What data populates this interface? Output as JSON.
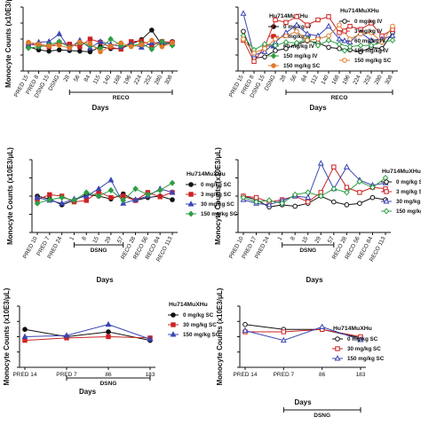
{
  "chart_data": [
    {
      "id": "a1",
      "type": "line",
      "ylabel": "Monocyte Counts (x10E3/μL)",
      "xlabel": "Days",
      "categories": [
        "PRED 15",
        "PRED 8",
        "DSNG 15",
        "DSNG",
        "28",
        "56",
        "84",
        "115",
        "140",
        "168",
        "196",
        "224",
        "252",
        "280",
        "308"
      ],
      "legend_title": "Hu714MuXHu",
      "legend_position": "right",
      "phases": [
        {
          "label": "RECO",
          "from": 4,
          "to": 14
        }
      ],
      "ylim": [
        0,
        1.0
      ],
      "series": [
        {
          "name": "0 mg/kg IV",
          "color": "#111111",
          "marker": "circle-filled",
          "values": [
            0.38,
            0.33,
            0.31,
            0.33,
            0.32,
            0.31,
            0.3,
            0.38,
            0.35,
            0.35,
            0.42,
            0.49,
            0.64,
            0.4,
            0.46
          ]
        },
        {
          "name": "3 mg/kg IV",
          "color": "#cc2222",
          "marker": "square-filled",
          "values": [
            0.42,
            0.4,
            0.38,
            0.44,
            0.42,
            0.38,
            0.5,
            0.45,
            0.37,
            0.34,
            0.46,
            0.47,
            0.4,
            0.46,
            0.45
          ]
        },
        {
          "name": "60 mg/kg IV",
          "color": "#3a46b4",
          "marker": "triangle-filled",
          "values": [
            0.4,
            0.45,
            0.46,
            0.58,
            0.35,
            0.48,
            0.36,
            0.46,
            0.42,
            0.38,
            0.42,
            0.37,
            0.44,
            0.45,
            0.43
          ]
        },
        {
          "name": "150 mg/kg IV",
          "color": "#2f9e44",
          "marker": "diamond-filled",
          "values": [
            0.36,
            0.38,
            0.41,
            0.46,
            0.37,
            0.44,
            0.4,
            0.35,
            0.5,
            0.4,
            0.39,
            0.43,
            0.34,
            0.46,
            0.4
          ]
        },
        {
          "name": "150 mg/kg SC",
          "color": "#e07a2a",
          "marker": "circle-filled",
          "values": [
            0.45,
            0.42,
            0.39,
            0.4,
            0.36,
            0.45,
            0.43,
            0.3,
            0.39,
            0.44,
            0.38,
            0.41,
            0.48,
            0.38,
            0.44
          ]
        }
      ]
    },
    {
      "id": "a2",
      "type": "line",
      "ylabel": "",
      "xlabel": "Days",
      "categories": [
        "PRED 15",
        "PRED 8",
        "DSNG 15",
        "DSNG",
        "28",
        "56",
        "84",
        "112",
        "140",
        "168",
        "196",
        "224",
        "252",
        "280",
        "308"
      ],
      "legend_title": "Hu714MuXHu",
      "legend_position": "right",
      "phases": [
        {
          "label": "RECO",
          "from": 4,
          "to": 14
        }
      ],
      "ylim": [
        0,
        1.0
      ],
      "series": [
        {
          "name": "0 mg/kg IV",
          "color": "#111111",
          "marker": "circle-open",
          "values": [
            0.62,
            0.2,
            0.22,
            0.32,
            0.35,
            0.42,
            0.47,
            0.44,
            0.37,
            0.35,
            0.33,
            0.3,
            0.37,
            0.35,
            0.6
          ]
        },
        {
          "name": "3 mg/kg IV",
          "color": "#cc2222",
          "marker": "square-open",
          "values": [
            0.48,
            0.15,
            0.38,
            0.8,
            0.76,
            0.85,
            0.72,
            0.8,
            0.85,
            0.6,
            0.7,
            0.65,
            0.75,
            0.55,
            0.65
          ]
        },
        {
          "name": "60 mg/kg IV",
          "color": "#3a46b4",
          "marker": "triangle-open",
          "values": [
            0.9,
            0.25,
            0.3,
            0.45,
            0.6,
            0.72,
            0.58,
            0.55,
            0.7,
            0.5,
            0.45,
            0.6,
            0.48,
            0.5,
            0.55
          ]
        },
        {
          "name": "150 mg/kg IV",
          "color": "#2f9e44",
          "marker": "diamond-open",
          "values": [
            0.55,
            0.33,
            0.42,
            0.4,
            0.45,
            0.44,
            0.5,
            0.4,
            0.48,
            0.42,
            0.38,
            0.4,
            0.4,
            0.45,
            0.48
          ]
        },
        {
          "name": "150 mg/kg SC",
          "color": "#e07a2a",
          "marker": "circle-open",
          "values": [
            0.5,
            0.28,
            0.35,
            0.5,
            0.55,
            0.62,
            0.48,
            0.5,
            0.55,
            0.72,
            0.5,
            0.58,
            0.6,
            0.45,
            0.7
          ]
        }
      ]
    },
    {
      "id": "b1",
      "type": "line",
      "ylabel": "Monocyte Counts (x10E3/μL)",
      "xlabel": "Days",
      "categories": [
        "PRED 10",
        "PRED 7",
        "PRED 24",
        "1",
        "8",
        "15",
        "29",
        "57",
        "RECO 28",
        "RECO 56",
        "RECO 84",
        "RECO 113"
      ],
      "legend_title": "Hu714MuXHu",
      "legend_position": "right",
      "phases": [
        {
          "label": "DSNG",
          "from": 3,
          "to": 7
        }
      ],
      "ylim": [
        0,
        1.0
      ],
      "series": [
        {
          "name": "0 mg/kg SC",
          "color": "#111111",
          "marker": "circle-filled",
          "values": [
            0.5,
            0.46,
            0.38,
            0.44,
            0.52,
            0.5,
            0.46,
            0.53,
            0.44,
            0.48,
            0.5,
            0.45
          ]
        },
        {
          "name": "3 mg/kg SC",
          "color": "#cc2222",
          "marker": "square-filled",
          "values": [
            0.45,
            0.52,
            0.5,
            0.42,
            0.44,
            0.56,
            0.48,
            0.5,
            0.44,
            0.55,
            0.49,
            0.55
          ]
        },
        {
          "name": "30 mg/kg SC",
          "color": "#3a46b4",
          "marker": "triangle-filled",
          "values": [
            0.48,
            0.44,
            0.4,
            0.46,
            0.5,
            0.6,
            0.72,
            0.4,
            0.45,
            0.5,
            0.6,
            0.55
          ]
        },
        {
          "name": "150 mg/kg SC",
          "color": "#2f9e44",
          "marker": "diamond-filled",
          "values": [
            0.4,
            0.45,
            0.48,
            0.44,
            0.55,
            0.5,
            0.58,
            0.44,
            0.6,
            0.52,
            0.58,
            0.68
          ]
        }
      ]
    },
    {
      "id": "b2",
      "type": "line",
      "ylabel": "Monocyte Counts (x10E3/μL)",
      "xlabel": "Days",
      "categories": [
        "PRED 10",
        "PRED 17",
        "PRED 24",
        "1",
        "8",
        "15",
        "29",
        "57",
        "RECO 28",
        "RECO 56",
        "RECO 84",
        "RECO 113"
      ],
      "legend_title": "Hu714MuXHu",
      "legend_position": "right",
      "phases": [
        {
          "label": "DSNG",
          "from": 3,
          "to": 7
        }
      ],
      "ylim": [
        0,
        1.0
      ],
      "series": [
        {
          "name": "0 mg/kg SC",
          "color": "#111111",
          "marker": "circle-open",
          "values": [
            0.5,
            0.45,
            0.35,
            0.38,
            0.36,
            0.4,
            0.5,
            0.42,
            0.38,
            0.4,
            0.48,
            0.45
          ]
        },
        {
          "name": "3 mg/kg SC",
          "color": "#cc2222",
          "marker": "square-open",
          "values": [
            0.5,
            0.48,
            0.42,
            0.45,
            0.5,
            0.42,
            0.55,
            0.9,
            0.62,
            0.55,
            0.62,
            0.6
          ]
        },
        {
          "name": "30 mg/kg SC",
          "color": "#3a46b4",
          "marker": "triangle-open",
          "values": [
            0.45,
            0.4,
            0.38,
            0.44,
            0.5,
            0.48,
            0.95,
            0.6,
            0.9,
            0.72,
            0.65,
            0.68
          ]
        },
        {
          "name": "150 mg/kg SC",
          "color": "#2f9e44",
          "marker": "diamond-open",
          "values": [
            0.48,
            0.42,
            0.44,
            0.4,
            0.52,
            0.55,
            0.5,
            0.6,
            0.55,
            0.7,
            0.62,
            0.75
          ]
        }
      ]
    },
    {
      "id": "c1",
      "type": "line",
      "ylabel": "Monocyte Counts (x10E3/μL)",
      "xlabel": "Days",
      "categories": [
        "PRED 14",
        "PRED 7",
        "86",
        "183"
      ],
      "legend_title": "Hu714MuXHu",
      "legend_position": "right",
      "phases": [
        {
          "label": "DSNG",
          "from": 1,
          "to": 3
        }
      ],
      "ylim": [
        0,
        1.0
      ],
      "series": [
        {
          "name": "0 mg/kg SC",
          "color": "#111111",
          "marker": "circle-filled",
          "values": [
            0.62,
            0.5,
            0.58,
            0.44
          ]
        },
        {
          "name": "30 mg/kg SC",
          "color": "#cc2222",
          "marker": "square-filled",
          "values": [
            0.44,
            0.48,
            0.5,
            0.48
          ]
        },
        {
          "name": "150 mg/kg SC",
          "color": "#3a46b4",
          "marker": "triangle-filled",
          "values": [
            0.5,
            0.52,
            0.7,
            0.46
          ]
        }
      ]
    },
    {
      "id": "c2",
      "type": "line",
      "ylabel": "Monocyte Counts (x10E3/μL)",
      "xlabel": "Days",
      "categories": [
        "PRED 14",
        "PRED 7",
        "86",
        "183"
      ],
      "legend_title": "Hu714MuXHu",
      "legend_position": "right",
      "phases": [
        {
          "label": "DSNG",
          "from": 1,
          "to": 3
        }
      ],
      "ylim": [
        0,
        1.0
      ],
      "series": [
        {
          "name": "0 mg/kg SC",
          "color": "#111111",
          "marker": "circle-open",
          "values": [
            0.7,
            0.62,
            0.62,
            0.48
          ]
        },
        {
          "name": "30 mg/kg SC",
          "color": "#cc2222",
          "marker": "square-open",
          "values": [
            0.58,
            0.58,
            0.62,
            0.5
          ]
        },
        {
          "name": "150 mg/kg SC",
          "color": "#3a46b4",
          "marker": "triangle-open",
          "values": [
            0.6,
            0.44,
            0.66,
            0.45
          ]
        }
      ]
    }
  ]
}
